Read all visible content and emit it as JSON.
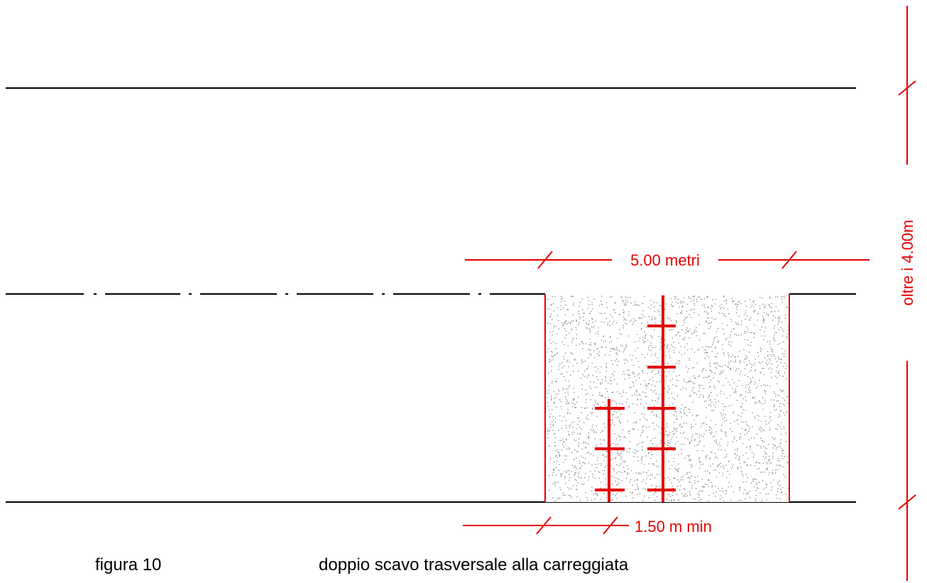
{
  "colors": {
    "line": "#000000",
    "dimension": "#e60000",
    "fill_pattern": "#808080",
    "background": "#ffffff"
  },
  "labels": {
    "excavation_width": "5.00 metri",
    "minimum_spacing": "1.50 m min",
    "road_width": "oltre i 4.00m",
    "figure_number": "figura 10",
    "caption": "doppio scavo trasversale alla carreggiata"
  }
}
